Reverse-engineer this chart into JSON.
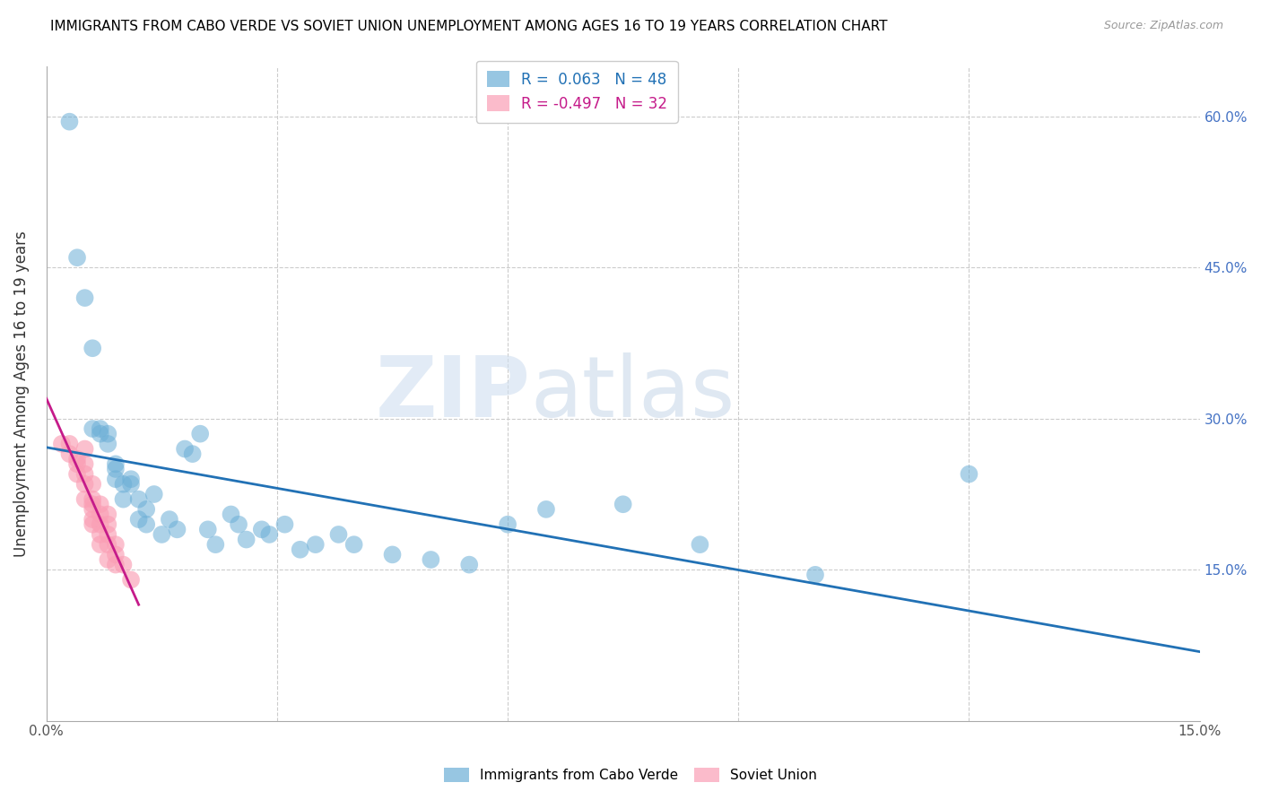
{
  "title": "IMMIGRANTS FROM CABO VERDE VS SOVIET UNION UNEMPLOYMENT AMONG AGES 16 TO 19 YEARS CORRELATION CHART",
  "source": "Source: ZipAtlas.com",
  "ylabel_label": "Unemployment Among Ages 16 to 19 years",
  "xlim": [
    0,
    0.15
  ],
  "ylim": [
    0,
    0.65
  ],
  "cabo_verde_R": 0.063,
  "cabo_verde_N": 48,
  "soviet_union_R": -0.497,
  "soviet_union_N": 32,
  "cabo_verde_color": "#6baed6",
  "soviet_union_color": "#fa9fb5",
  "cabo_verde_line_color": "#2171b5",
  "soviet_union_line_color": "#c51b8a",
  "watermark_zip": "ZIP",
  "watermark_atlas": "atlas",
  "cabo_verde_x": [
    0.003,
    0.004,
    0.005,
    0.006,
    0.006,
    0.007,
    0.007,
    0.008,
    0.008,
    0.009,
    0.009,
    0.009,
    0.01,
    0.01,
    0.011,
    0.011,
    0.012,
    0.012,
    0.013,
    0.013,
    0.014,
    0.015,
    0.016,
    0.017,
    0.018,
    0.019,
    0.02,
    0.021,
    0.022,
    0.024,
    0.025,
    0.026,
    0.028,
    0.029,
    0.031,
    0.033,
    0.035,
    0.038,
    0.04,
    0.045,
    0.05,
    0.055,
    0.06,
    0.065,
    0.075,
    0.085,
    0.1,
    0.12
  ],
  "cabo_verde_y": [
    0.595,
    0.46,
    0.42,
    0.37,
    0.29,
    0.285,
    0.29,
    0.285,
    0.275,
    0.255,
    0.25,
    0.24,
    0.22,
    0.235,
    0.235,
    0.24,
    0.22,
    0.2,
    0.21,
    0.195,
    0.225,
    0.185,
    0.2,
    0.19,
    0.27,
    0.265,
    0.285,
    0.19,
    0.175,
    0.205,
    0.195,
    0.18,
    0.19,
    0.185,
    0.195,
    0.17,
    0.175,
    0.185,
    0.175,
    0.165,
    0.16,
    0.155,
    0.195,
    0.21,
    0.215,
    0.175,
    0.145,
    0.245
  ],
  "soviet_union_x": [
    0.002,
    0.003,
    0.003,
    0.004,
    0.004,
    0.004,
    0.005,
    0.005,
    0.005,
    0.005,
    0.005,
    0.006,
    0.006,
    0.006,
    0.006,
    0.006,
    0.006,
    0.007,
    0.007,
    0.007,
    0.007,
    0.007,
    0.008,
    0.008,
    0.008,
    0.008,
    0.008,
    0.009,
    0.009,
    0.009,
    0.01,
    0.011
  ],
  "soviet_union_y": [
    0.275,
    0.275,
    0.265,
    0.26,
    0.255,
    0.245,
    0.27,
    0.255,
    0.245,
    0.235,
    0.22,
    0.235,
    0.22,
    0.215,
    0.21,
    0.2,
    0.195,
    0.215,
    0.205,
    0.195,
    0.185,
    0.175,
    0.205,
    0.195,
    0.185,
    0.175,
    0.16,
    0.175,
    0.165,
    0.155,
    0.155,
    0.14
  ]
}
